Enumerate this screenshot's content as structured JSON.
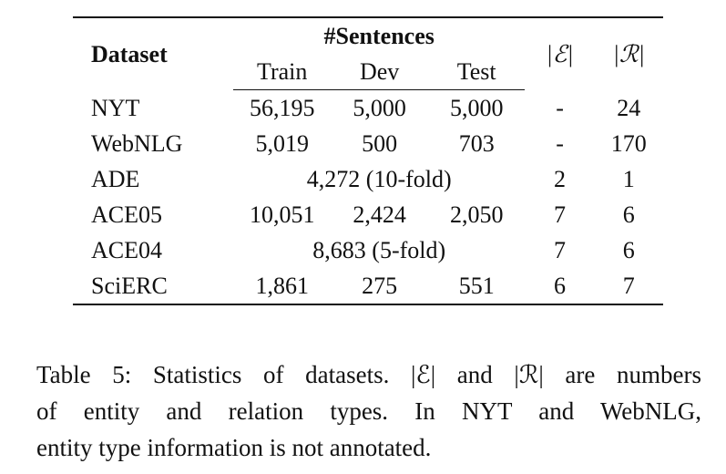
{
  "table": {
    "header": {
      "dataset": "Dataset",
      "sentences": "#Sentences",
      "train": "Train",
      "dev": "Dev",
      "test": "Test",
      "entity_types": "|ℰ|",
      "relation_types": "|ℛ|"
    },
    "rows": [
      {
        "dataset": "NYT",
        "train": "56,195",
        "dev": "5,000",
        "test": "5,000",
        "entity_types": "-",
        "relation_types": "24"
      },
      {
        "dataset": "WebNLG",
        "train": "5,019",
        "dev": "500",
        "test": "703",
        "entity_types": "-",
        "relation_types": "170"
      },
      {
        "dataset": "ADE",
        "merged": "4,272 (10-fold)",
        "entity_types": "2",
        "relation_types": "1"
      },
      {
        "dataset": "ACE05",
        "train": "10,051",
        "dev": "2,424",
        "test": "2,050",
        "entity_types": "7",
        "relation_types": "6"
      },
      {
        "dataset": "ACE04",
        "merged": "8,683 (5-fold)",
        "entity_types": "7",
        "relation_types": "6"
      },
      {
        "dataset": "SciERC",
        "train": "1,861",
        "dev": "275",
        "test": "551",
        "entity_types": "6",
        "relation_types": "7"
      }
    ]
  },
  "caption": {
    "line1": "Table 5: Statistics of datasets. |ℰ| and |ℛ| are numbers",
    "line2": "of entity and relation types.  In NYT and WebNLG,",
    "line3": "entity type information is not annotated."
  }
}
